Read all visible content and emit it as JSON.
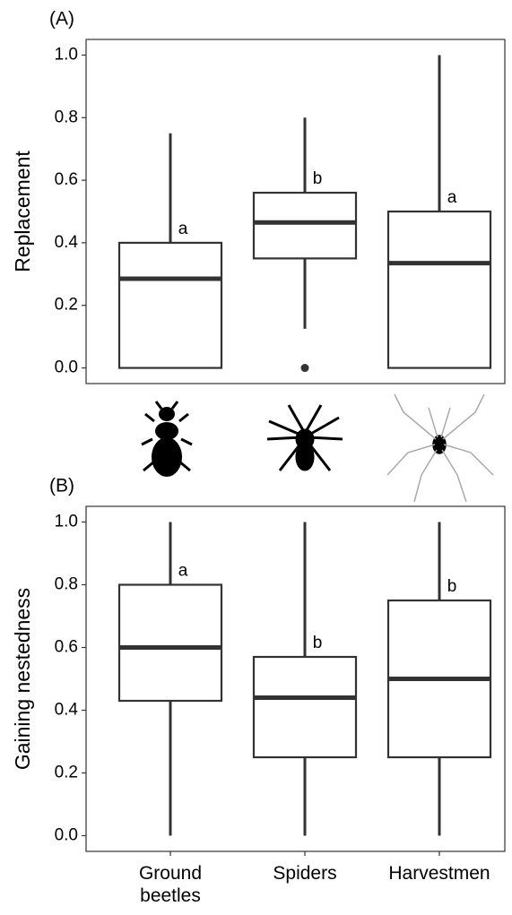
{
  "chart_data": [
    {
      "type": "box",
      "panel_label": "(A)",
      "ylabel": "Replacement",
      "ylim": [
        -0.05,
        1.05
      ],
      "yticks": [
        {
          "value": 0,
          "label": "0.0"
        },
        0.2,
        0.4,
        0.6,
        0.8,
        {
          "value": 1,
          "label": "1.0"
        }
      ],
      "color": "#333333",
      "boxes": [
        {
          "low": 0,
          "q1": 0,
          "median": 0.285,
          "q3": 0.4,
          "high": 0.75,
          "outliers": [],
          "letter": "a"
        },
        {
          "low": 0.125,
          "q1": 0.35,
          "median": 0.465,
          "q3": 0.56,
          "high": 0.8,
          "outliers": [
            0
          ],
          "letter": "b"
        },
        {
          "low": 0,
          "q1": 0,
          "median": 0.335,
          "q3": 0.5,
          "high": 1,
          "outliers": [],
          "letter": "a"
        }
      ]
    },
    {
      "type": "box",
      "panel_label": "(B)",
      "ylabel": "Gaining nestedness",
      "ylim": [
        -0.05,
        1.05
      ],
      "yticks": [
        {
          "value": 0,
          "label": "0.0"
        },
        0.2,
        0.4,
        0.6,
        0.8,
        {
          "value": 1,
          "label": "1.0"
        }
      ],
      "color": "#333333",
      "categories": [
        "Ground beetles",
        "Spiders",
        "Harvestmen"
      ],
      "boxes": [
        {
          "low": 0,
          "q1": 0.43,
          "median": 0.6,
          "q3": 0.8,
          "high": 1,
          "outliers": [],
          "letter": "a"
        },
        {
          "low": 0,
          "q1": 0.25,
          "median": 0.44,
          "q3": 0.57,
          "high": 1,
          "outliers": [],
          "letter": "b"
        },
        {
          "low": 0,
          "q1": 0.25,
          "median": 0.5,
          "q3": 0.75,
          "high": 1,
          "outliers": [],
          "letter": "b"
        }
      ]
    }
  ]
}
